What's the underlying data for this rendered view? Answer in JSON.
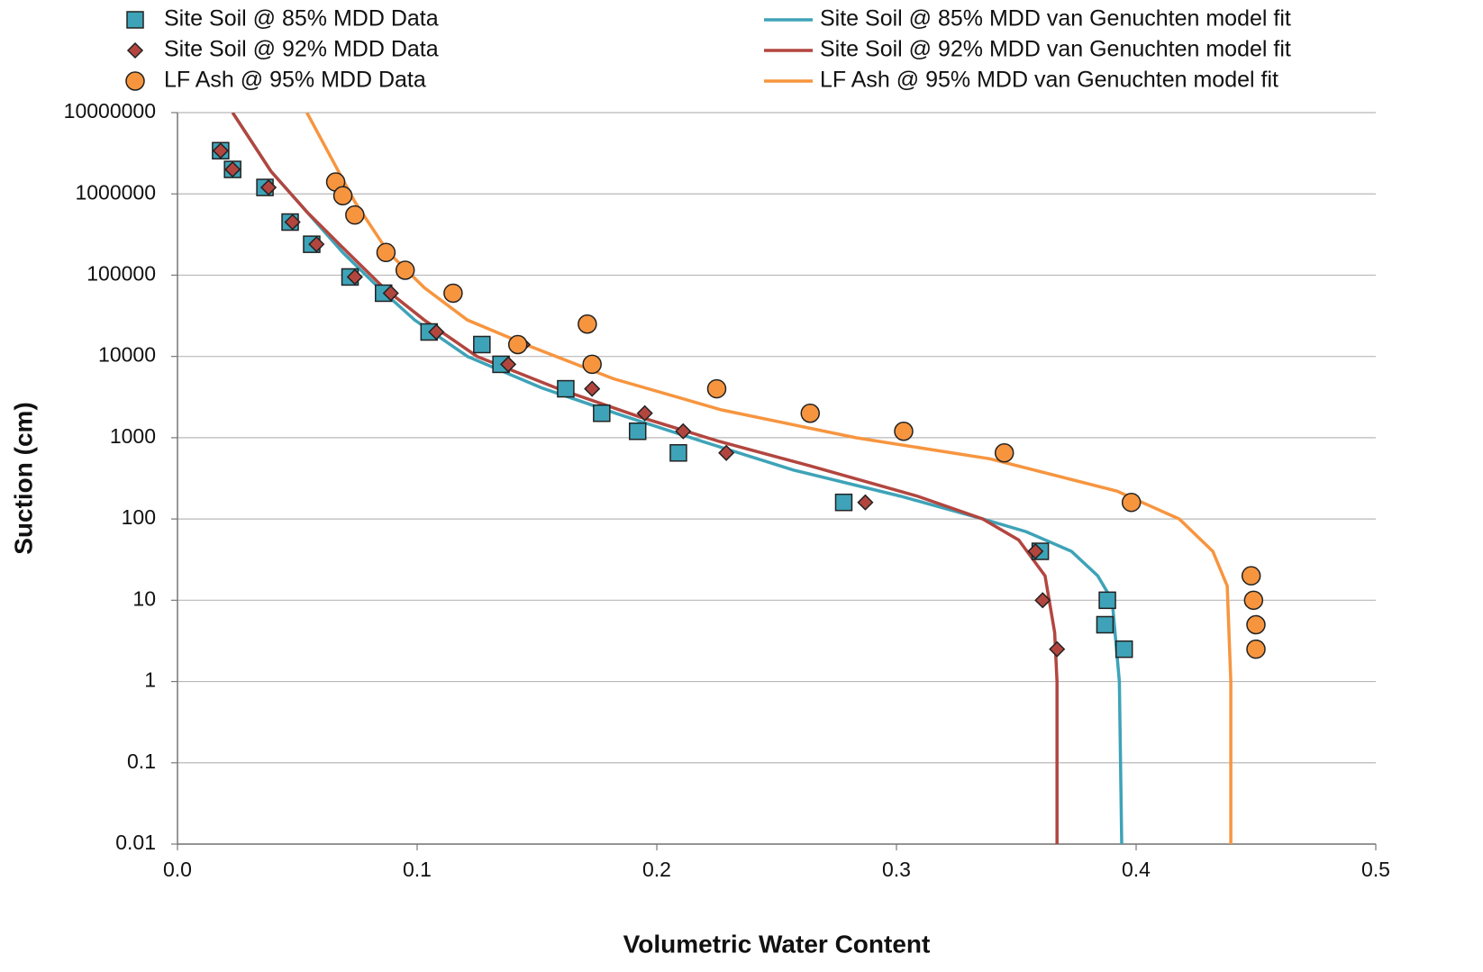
{
  "chart_data": {
    "type": "scatter",
    "x_label": "Volumetric Water Content",
    "y_label": "Suction (cm)",
    "log_y": true,
    "grid": true,
    "xlim": [
      0,
      0.5
    ],
    "xticks": [
      {
        "value": 0,
        "label": "0.0"
      },
      0.1,
      0.2,
      0.3,
      0.4,
      0.5
    ],
    "ylim": [
      0.01,
      10000000
    ],
    "yticks": [
      0.01,
      0.1,
      1,
      10,
      100,
      1000,
      10000,
      100000,
      1000000,
      10000000
    ],
    "series": [
      {
        "name": "Site Soil @ 85% MDD Data",
        "mode": "markers",
        "marker": "square",
        "color": "#3ea3b8",
        "x": [
          0.018,
          0.023,
          0.0365,
          0.047,
          0.056,
          0.072,
          0.086,
          0.105,
          0.127,
          0.135,
          0.162,
          0.177,
          0.192,
          0.209,
          0.278,
          0.36,
          0.388,
          0.387,
          0.395
        ],
        "values": [
          3400000,
          2000000,
          1200000,
          450000,
          240000,
          95000,
          60000,
          20000,
          14000,
          8000,
          4000,
          2000,
          1200,
          650,
          160,
          40,
          10,
          5,
          2.5
        ]
      },
      {
        "name": "Site Soil @ 92% MDD Data",
        "mode": "markers",
        "marker": "diamond",
        "color": "#b2463f",
        "x": [
          0.018,
          0.023,
          0.038,
          0.048,
          0.058,
          0.074,
          0.089,
          0.108,
          0.138,
          0.144,
          0.173,
          0.195,
          0.211,
          0.229,
          0.287,
          0.358,
          0.361,
          0.367
        ],
        "values": [
          3400000,
          2000000,
          1200000,
          450000,
          240000,
          95000,
          60000,
          20000,
          8000,
          14000,
          4000,
          2000,
          1200,
          650,
          160,
          40,
          10,
          2.5
        ]
      },
      {
        "name": "LF Ash @ 95% MDD Data",
        "mode": "markers",
        "marker": "circle",
        "color": "#f7953f",
        "x": [
          0.066,
          0.069,
          0.074,
          0.087,
          0.095,
          0.115,
          0.171,
          0.142,
          0.173,
          0.225,
          0.264,
          0.303,
          0.345,
          0.398,
          0.448,
          0.449,
          0.45,
          0.45
        ],
        "values": [
          1400000,
          950000,
          550000,
          190000,
          115000,
          60000,
          25000,
          14000,
          8000,
          4000,
          2000,
          1200,
          650,
          160,
          20,
          10,
          5,
          2.5
        ]
      },
      {
        "name": "Site Soil @ 85% MDD van Genuchten model fit",
        "mode": "lines",
        "color": "#3ea3b8",
        "x": [
          0.394,
          0.393,
          0.39,
          0.384,
          0.373,
          0.354,
          0.336,
          0.302,
          0.257,
          0.219,
          0.185,
          0.152,
          0.121,
          0.099,
          0.084,
          0.069,
          0.054,
          0.039,
          0.023
        ],
        "values": [
          0.01,
          1,
          10,
          20,
          40,
          70,
          100,
          190,
          400,
          900,
          1900,
          4100,
          10000,
          28000,
          70000,
          190000,
          600000,
          1900000,
          10000000
        ]
      },
      {
        "name": "Site Soil @ 92% MDD van Genuchten model fit",
        "mode": "lines",
        "color": "#b2463f",
        "x": [
          0.367,
          0.367,
          0.366,
          0.362,
          0.351,
          0.336,
          0.309,
          0.264,
          0.226,
          0.193,
          0.159,
          0.125,
          0.103,
          0.086,
          0.071,
          0.054,
          0.039,
          0.023
        ],
        "values": [
          0.01,
          1,
          4,
          20,
          55,
          100,
          190,
          450,
          900,
          1800,
          4000,
          10000,
          28000,
          70000,
          190000,
          600000,
          1900000,
          10000000
        ]
      },
      {
        "name": "LF Ash @ 95% MDD van Genuchten model fit",
        "mode": "lines",
        "color": "#f7953f",
        "x": [
          0.4395,
          0.4395,
          0.438,
          0.432,
          0.418,
          0.392,
          0.339,
          0.283,
          0.227,
          0.182,
          0.148,
          0.121,
          0.103,
          0.088,
          0.074,
          0.063,
          0.054
        ],
        "values": [
          0.01,
          1,
          15,
          40,
          100,
          220,
          550,
          1000,
          2200,
          5300,
          13000,
          28000,
          70000,
          190000,
          800000,
          3200000,
          10000000
        ]
      }
    ]
  }
}
